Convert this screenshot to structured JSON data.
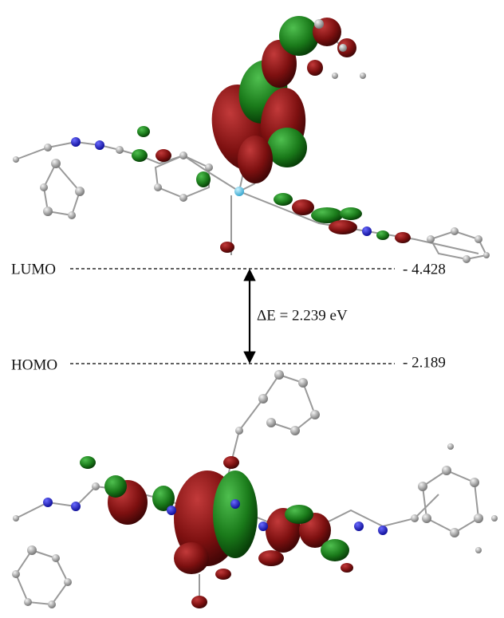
{
  "diagram": {
    "lumo": {
      "label": "LUMO",
      "energy": "- 4.428"
    },
    "homo": {
      "label": "HOMO",
      "energy": "- 2.189"
    },
    "gap": "ΔE = 2.239 eV"
  }
}
